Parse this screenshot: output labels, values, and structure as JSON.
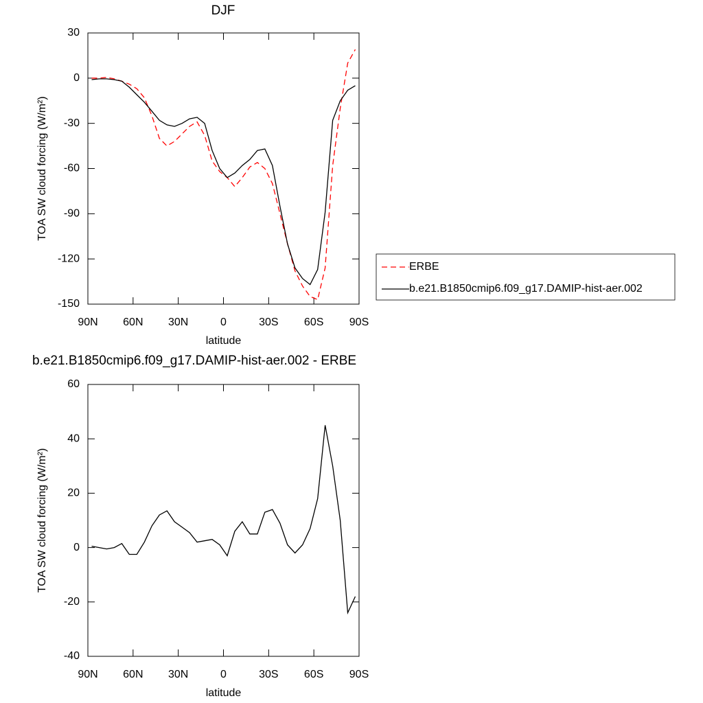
{
  "chart_data": [
    {
      "type": "line",
      "title": "DJF",
      "xlabel": "latitude",
      "ylabel": "TOA SW cloud forcing (W/m²)",
      "x": [
        87.5,
        82.5,
        77.5,
        72.5,
        67.5,
        62.5,
        57.5,
        52.5,
        47.5,
        42.5,
        37.5,
        32.5,
        27.5,
        22.5,
        17.5,
        12.5,
        7.5,
        2.5,
        -2.5,
        -7.5,
        -12.5,
        -17.5,
        -22.5,
        -27.5,
        -32.5,
        -37.5,
        -42.5,
        -47.5,
        -52.5,
        -57.5,
        -62.5,
        -67.5,
        -72.5,
        -77.5,
        -82.5,
        -87.5
      ],
      "xlim": [
        90,
        -90
      ],
      "xticks": [
        {
          "value": 90,
          "label": "90N"
        },
        {
          "value": 60,
          "label": "60N"
        },
        {
          "value": 30,
          "label": "30N"
        },
        0,
        {
          "value": -30,
          "label": "30S"
        },
        {
          "value": -60,
          "label": "60S"
        },
        {
          "value": -90,
          "label": "90S"
        }
      ],
      "ylim": [
        -150,
        30
      ],
      "yticks": [
        30,
        0,
        -30,
        -60,
        -90,
        -120,
        -150
      ],
      "legend": "right",
      "series": [
        {
          "name": "ERBE",
          "color": "#ff0000",
          "style": "dashed",
          "values": [
            0,
            0,
            0.5,
            -0.5,
            -2,
            -4,
            -7,
            -13,
            -25,
            -40,
            -45,
            -42,
            -37,
            -32,
            -29,
            -38,
            -55,
            -62,
            -66,
            -72,
            -66,
            -59,
            -56,
            -60,
            -70,
            -90,
            -110,
            -128,
            -138,
            -145,
            -147,
            -126,
            -58,
            -20,
            10,
            19
          ]
        },
        {
          "name": "b.e21.B1850cmip6.f09_g17.DAMIP-hist-aer.002",
          "color": "#000000",
          "style": "solid",
          "values": [
            -1,
            -0.5,
            -0.5,
            -1,
            -2,
            -6,
            -11,
            -16,
            -22,
            -28,
            -31,
            -32,
            -30,
            -27,
            -26,
            -30,
            -48,
            -60,
            -66,
            -63,
            -58,
            -54,
            -48,
            -47,
            -58,
            -85,
            -110,
            -126,
            -133,
            -137,
            -127,
            -89,
            -28,
            -15,
            -8,
            -5
          ]
        }
      ]
    },
    {
      "type": "line",
      "title": "b.e21.B1850cmip6.f09_g17.DAMIP-hist-aer.002 - ERBE",
      "xlabel": "latitude",
      "ylabel": "TOA SW cloud forcing (W/m²)",
      "x": [
        87.5,
        82.5,
        77.5,
        72.5,
        67.5,
        62.5,
        57.5,
        52.5,
        47.5,
        42.5,
        37.5,
        32.5,
        27.5,
        22.5,
        17.5,
        12.5,
        7.5,
        2.5,
        -2.5,
        -7.5,
        -12.5,
        -17.5,
        -22.5,
        -27.5,
        -32.5,
        -37.5,
        -42.5,
        -47.5,
        -52.5,
        -57.5,
        -62.5,
        -67.5,
        -72.5,
        -77.5,
        -82.5,
        -87.5
      ],
      "xlim": [
        90,
        -90
      ],
      "xticks": [
        {
          "value": 90,
          "label": "90N"
        },
        {
          "value": 60,
          "label": "60N"
        },
        {
          "value": 30,
          "label": "30N"
        },
        0,
        {
          "value": -30,
          "label": "30S"
        },
        {
          "value": -60,
          "label": "60S"
        },
        {
          "value": -90,
          "label": "90S"
        }
      ],
      "ylim": [
        -40,
        60
      ],
      "yticks": [
        60,
        40,
        20,
        0,
        -20,
        -40
      ],
      "color": "#000000",
      "values": [
        0.5,
        0,
        -0.5,
        0,
        1.5,
        -2.5,
        -2.5,
        2,
        8,
        12,
        13.5,
        9.5,
        7.5,
        5.5,
        2,
        2.5,
        3,
        1,
        -3,
        6,
        9.5,
        5,
        5,
        13,
        14,
        9,
        1,
        -2,
        1,
        7,
        18,
        45,
        30,
        10,
        -24,
        -18
      ]
    }
  ]
}
